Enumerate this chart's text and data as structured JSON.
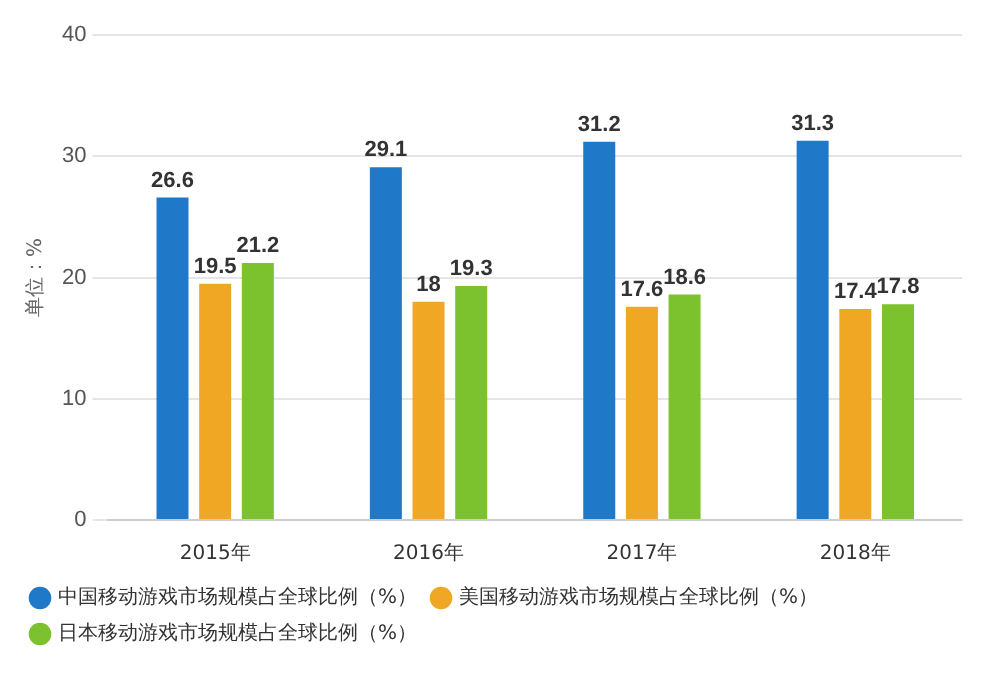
{
  "chart_data": {
    "type": "bar",
    "ylabel": "单位：%",
    "categories": [
      "2015年",
      "2016年",
      "2017年",
      "2018年"
    ],
    "series": [
      {
        "name": "中国移动游戏市场规模占全球比例（%）",
        "color": "#1f78c8",
        "values": [
          26.6,
          29.1,
          31.2,
          31.3
        ]
      },
      {
        "name": "美国移动游戏市场规模占全球比例（%）",
        "color": "#f0a824",
        "values": [
          19.5,
          18,
          17.6,
          17.4
        ]
      },
      {
        "name": "日本移动游戏市场规模占全球比例（%）",
        "color": "#7cc12e",
        "values": [
          21.2,
          19.3,
          18.6,
          17.8
        ]
      }
    ],
    "ylim": [
      0,
      40
    ],
    "yticks": [
      0,
      10,
      20,
      30,
      40
    ],
    "grid": "y",
    "legend": "bottom",
    "data_labels": true
  }
}
